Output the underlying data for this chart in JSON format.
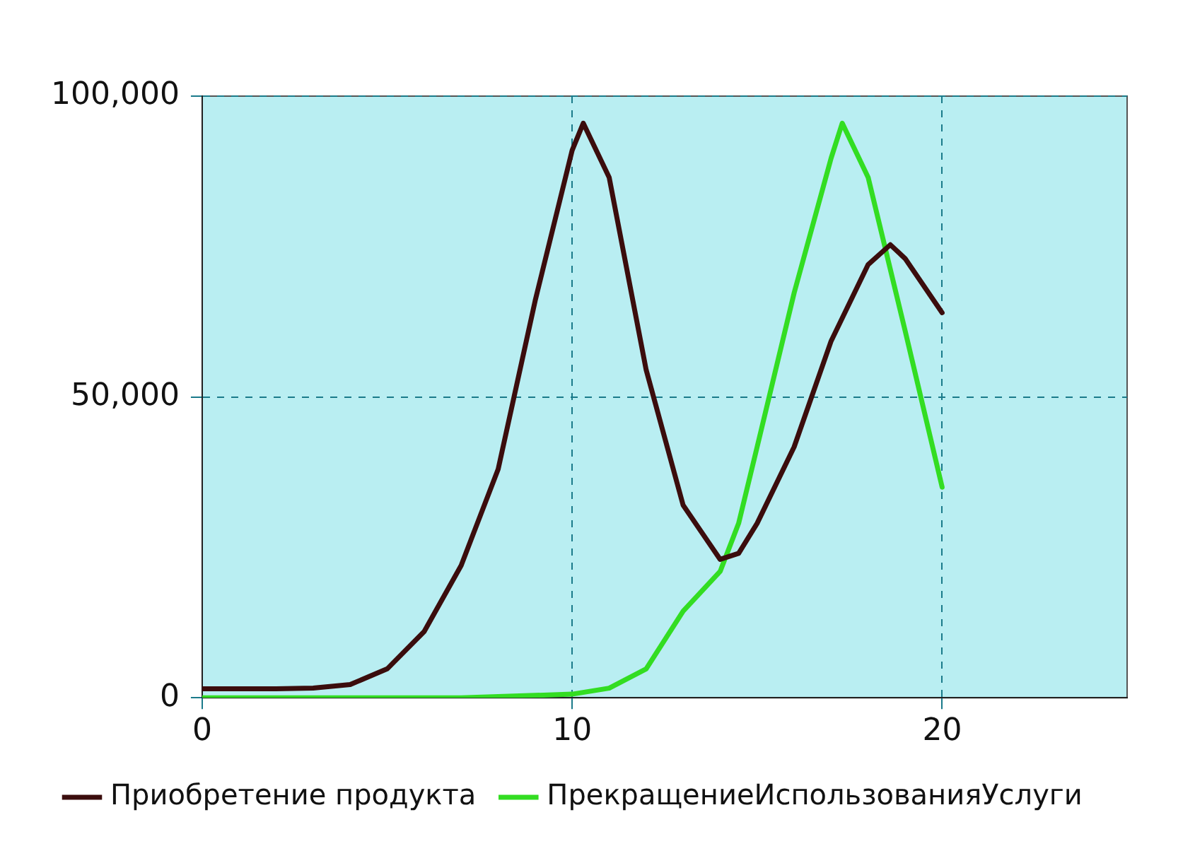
{
  "chart_data": {
    "type": "line",
    "x": [
      0,
      1,
      2,
      3,
      4,
      5,
      6,
      7,
      8,
      9,
      10,
      10.3,
      11,
      12,
      13,
      14,
      14.5,
      15,
      16,
      17,
      18,
      18.6,
      19,
      20
    ],
    "series": [
      {
        "name": "Приобретение продукта",
        "color": "#3b0d0d",
        "values": [
          1500,
          1500,
          1500,
          1600,
          2200,
          4800,
          11000,
          22000,
          38000,
          66000,
          91000,
          95500,
          86500,
          54500,
          32000,
          23000,
          24000,
          29000,
          41700,
          59300,
          72000,
          75300,
          73000,
          64000
        ]
      },
      {
        "name": "ПрекращениеИспользованияУслуги",
        "color": "#33dd22",
        "x": [
          0,
          7,
          8,
          9,
          10,
          11,
          12,
          13,
          14,
          14.5,
          15,
          16,
          17,
          17.3,
          18,
          19,
          20
        ],
        "values": [
          0,
          0,
          200,
          400,
          600,
          1600,
          4800,
          14400,
          21000,
          29000,
          41700,
          67300,
          89700,
          95500,
          86500,
          61000,
          35000
        ]
      }
    ],
    "xlim": [
      0,
      25
    ],
    "xticks": [
      0,
      10,
      20
    ],
    "ylim": [
      0,
      100000
    ],
    "yticks": [
      0,
      {
        "value": 50000,
        "label": "50,000"
      },
      {
        "value": 100000,
        "label": "100,000"
      }
    ],
    "grid": true,
    "legend": "bottom",
    "marker": "none",
    "line_style": "solid"
  }
}
